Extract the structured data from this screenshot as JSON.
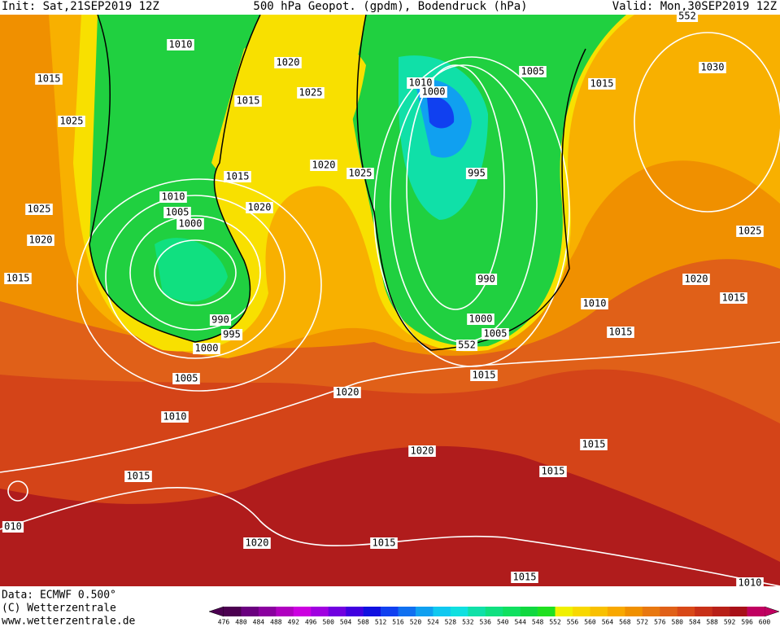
{
  "header": {
    "init": "Init: Sat,21SEP2019 12Z",
    "title": "500 hPa Geopot. (gpdm), Bodendruck (hPa)",
    "valid": "Valid: Mon,30SEP2019 12Z"
  },
  "isobar_labels": [
    "1010",
    "1015",
    "1025",
    "1020",
    "1015",
    "1025",
    "1010",
    "1000",
    "1005",
    "1015",
    "1030",
    "1020",
    "1025",
    "1015",
    "1020",
    "1010",
    "1005",
    "1000",
    "1025",
    "1020",
    "1015",
    "995",
    "990",
    "1000",
    "1005",
    "990",
    "995",
    "1000",
    "1005",
    "1010",
    "1020",
    "1015",
    "1010",
    "1015",
    "1020",
    "1015",
    "1025",
    "1020",
    "1015",
    "1015",
    "1015",
    "1020",
    "1015",
    "1015",
    "1010",
    "010",
    "552",
    "552"
  ],
  "footer": {
    "data": "Data: ECMWF  0.500°",
    "copyright": "(C) Wetterzentrale",
    "url": "www.wetterzentrale.de"
  },
  "colorbar": {
    "levels": [
      476,
      480,
      484,
      488,
      492,
      496,
      500,
      504,
      508,
      512,
      516,
      520,
      524,
      528,
      532,
      536,
      540,
      544,
      548,
      552,
      556,
      560,
      564,
      568,
      572,
      576,
      580,
      584,
      588,
      592,
      596,
      600
    ],
    "colors": [
      "#4b0050",
      "#6a007f",
      "#8a009f",
      "#b000c0",
      "#cc00e0",
      "#a000e0",
      "#7000e0",
      "#4000e0",
      "#1010e0",
      "#1040f0",
      "#1070f0",
      "#10a0f0",
      "#10c8f0",
      "#10e0e0",
      "#10e0a8",
      "#10e080",
      "#10e060",
      "#10d840",
      "#20e020",
      "#f0f000",
      "#f8d800",
      "#f8c000",
      "#f8a800",
      "#f09000",
      "#e87810",
      "#e06018",
      "#d84818",
      "#c83018",
      "#b82018",
      "#a81018",
      "#c00060"
    ]
  }
}
